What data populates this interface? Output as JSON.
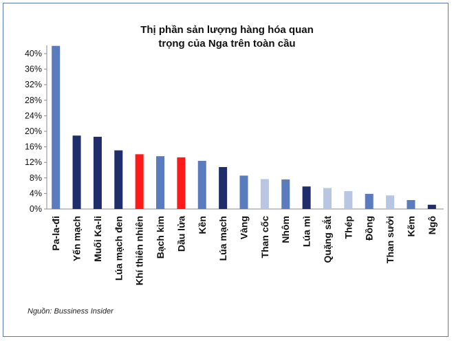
{
  "chart_data": {
    "type": "bar",
    "title_lines": [
      "Thị phần sản lượng hàng hóa quan",
      "trọng của Nga trên toàn cầu"
    ],
    "categories": [
      "Pa-la-đi",
      "Yến mạch",
      "Muối Ka-li",
      "Lúa mạch đen",
      "Khí thiên nhiên",
      "Bạch kim",
      "Dầu lửa",
      "Kền",
      "Lúa mạch",
      "Vàng",
      "Than cốc",
      "Nhôm",
      "Lúa mì",
      "Quặng sắt",
      "Thép",
      "Đồng",
      "Than sưởi",
      "Kẽm",
      "Ngô"
    ],
    "values": [
      42,
      18.9,
      18.6,
      15.1,
      14.1,
      13.6,
      13.3,
      12.4,
      10.8,
      8.6,
      7.7,
      7.6,
      5.8,
      5.4,
      4.6,
      3.9,
      3.5,
      2.3,
      1.1
    ],
    "bar_colors": [
      "#5b7bbf",
      "#1f2d6b",
      "#1f2d6b",
      "#1f2d6b",
      "#ff1a1a",
      "#5b7bbf",
      "#ff1a1a",
      "#5b7bbf",
      "#1f2d6b",
      "#5b7bbf",
      "#b8c6e3",
      "#5b7bbf",
      "#1f2d6b",
      "#b8c6e3",
      "#b8c6e3",
      "#5b7bbf",
      "#b8c6e3",
      "#5b7bbf",
      "#1f2d6b"
    ],
    "yticks": [
      "0%",
      "4%",
      "8%",
      "12%",
      "16%",
      "20%",
      "24%",
      "28%",
      "32%",
      "36%",
      "40%"
    ],
    "ylim": [
      0,
      40
    ],
    "grid": false,
    "xlabel": "",
    "ylabel": ""
  },
  "source_note": "Nguồn: Bussiness Insider"
}
